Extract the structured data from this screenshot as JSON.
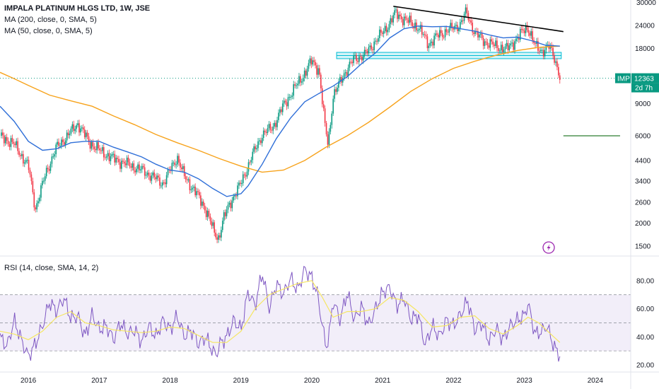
{
  "header": {
    "title": "IMPALA PLATINUM HLGS LTD, 1W, JSE",
    "ma200_label": "MA (200, close, 0, SMA, 5)",
    "ma50_label": "MA (50, close, 0, SMA, 5)",
    "rsi_label": "RSI (14, close, SMA, 14, 2)"
  },
  "price_badge": {
    "symbol": "IMP",
    "price": "12363",
    "countdown": "2d 7h",
    "color": "#089981"
  },
  "top_axis_partial": "30000",
  "colors": {
    "up": "#089981",
    "down": "#f23645",
    "ma200": "#f7a31c",
    "ma50": "#2f6fd8",
    "rsi": "#7e57c2",
    "rsi_ma": "#f5e663",
    "rsi_band": "#ede7f6",
    "zone_fill": "#b2ebf2",
    "zone_line": "#00bcd4",
    "trendline": "#000000",
    "target_line": "#2e7d32"
  },
  "chart_data": [
    {
      "type": "candlestick",
      "title": "IMPALA PLATINUM HLGS LTD, 1W, JSE",
      "scale": "log",
      "y_ticks": [
        1500,
        2000,
        2600,
        3400,
        4400,
        6000,
        9000,
        18000,
        24000
      ],
      "x_ticks": [
        "2016",
        "2017",
        "2018",
        "2019",
        "2020",
        "2021",
        "2022",
        "2023",
        "2024"
      ],
      "x_range": [
        2015.6,
        2024.5
      ],
      "y_range": [
        1350,
        33000
      ],
      "close_path": [
        [
          2015.6,
          6000
        ],
        [
          2015.8,
          5400
        ],
        [
          2016.0,
          4100
        ],
        [
          2016.1,
          2400
        ],
        [
          2016.25,
          3800
        ],
        [
          2016.4,
          5200
        ],
        [
          2016.55,
          6000
        ],
        [
          2016.7,
          7000
        ],
        [
          2016.85,
          5600
        ],
        [
          2017.0,
          5000
        ],
        [
          2017.2,
          4500
        ],
        [
          2017.4,
          4200
        ],
        [
          2017.6,
          3900
        ],
        [
          2017.75,
          3600
        ],
        [
          2017.9,
          3300
        ],
        [
          2018.0,
          3900
        ],
        [
          2018.1,
          4600
        ],
        [
          2018.2,
          3600
        ],
        [
          2018.35,
          3000
        ],
        [
          2018.5,
          2400
        ],
        [
          2018.62,
          1800
        ],
        [
          2018.68,
          1650
        ],
        [
          2018.75,
          2100
        ],
        [
          2018.85,
          2600
        ],
        [
          2019.0,
          3300
        ],
        [
          2019.15,
          4600
        ],
        [
          2019.3,
          6100
        ],
        [
          2019.45,
          6700
        ],
        [
          2019.6,
          8800
        ],
        [
          2019.75,
          10800
        ],
        [
          2019.9,
          13200
        ],
        [
          2020.0,
          15400
        ],
        [
          2020.1,
          13800
        ],
        [
          2020.18,
          7000
        ],
        [
          2020.23,
          5400
        ],
        [
          2020.3,
          9800
        ],
        [
          2020.45,
          13000
        ],
        [
          2020.6,
          15800
        ],
        [
          2020.75,
          16600
        ],
        [
          2020.9,
          19800
        ],
        [
          2021.0,
          22000
        ],
        [
          2021.1,
          24800
        ],
        [
          2021.18,
          28000
        ],
        [
          2021.3,
          26000
        ],
        [
          2021.5,
          23500
        ],
        [
          2021.65,
          19000
        ],
        [
          2021.8,
          21500
        ],
        [
          2021.95,
          22800
        ],
        [
          2022.1,
          24500
        ],
        [
          2022.18,
          28500
        ],
        [
          2022.3,
          21800
        ],
        [
          2022.45,
          19500
        ],
        [
          2022.6,
          18500
        ],
        [
          2022.75,
          17800
        ],
        [
          2022.9,
          20500
        ],
        [
          2023.0,
          22800
        ],
        [
          2023.05,
          23500
        ],
        [
          2023.15,
          18500
        ],
        [
          2023.25,
          17500
        ],
        [
          2023.35,
          18400
        ],
        [
          2023.42,
          16200
        ],
        [
          2023.48,
          13500
        ],
        [
          2023.5,
          12363
        ]
      ],
      "ma50_path": [
        [
          2015.6,
          8700
        ],
        [
          2015.8,
          7200
        ],
        [
          2016.0,
          5600
        ],
        [
          2016.2,
          5000
        ],
        [
          2016.4,
          5100
        ],
        [
          2016.6,
          5500
        ],
        [
          2016.8,
          5600
        ],
        [
          2017.0,
          5600
        ],
        [
          2017.2,
          5200
        ],
        [
          2017.4,
          4900
        ],
        [
          2017.6,
          4600
        ],
        [
          2017.8,
          4200
        ],
        [
          2018.0,
          3900
        ],
        [
          2018.2,
          3800
        ],
        [
          2018.4,
          3500
        ],
        [
          2018.6,
          3100
        ],
        [
          2018.8,
          2800
        ],
        [
          2019.0,
          2900
        ],
        [
          2019.1,
          3200
        ],
        [
          2019.3,
          4200
        ],
        [
          2019.5,
          5800
        ],
        [
          2019.7,
          7500
        ],
        [
          2019.9,
          9200
        ],
        [
          2020.1,
          10200
        ],
        [
          2020.3,
          11200
        ],
        [
          2020.5,
          12600
        ],
        [
          2020.7,
          14800
        ],
        [
          2020.9,
          17000
        ],
        [
          2021.1,
          20500
        ],
        [
          2021.3,
          23000
        ],
        [
          2021.5,
          23800
        ],
        [
          2021.7,
          23600
        ],
        [
          2021.9,
          23700
        ],
        [
          2022.1,
          23000
        ],
        [
          2022.3,
          22300
        ],
        [
          2022.5,
          21300
        ],
        [
          2022.7,
          20500
        ],
        [
          2022.9,
          20700
        ],
        [
          2023.1,
          19800
        ],
        [
          2023.3,
          18700
        ],
        [
          2023.5,
          18500
        ]
      ],
      "ma200_path": [
        [
          2015.6,
          13300
        ],
        [
          2015.8,
          12300
        ],
        [
          2016.0,
          11300
        ],
        [
          2016.3,
          10000
        ],
        [
          2016.6,
          9300
        ],
        [
          2016.9,
          8700
        ],
        [
          2017.2,
          7700
        ],
        [
          2017.5,
          6900
        ],
        [
          2017.8,
          6100
        ],
        [
          2018.1,
          5500
        ],
        [
          2018.4,
          5000
        ],
        [
          2018.7,
          4500
        ],
        [
          2019.0,
          4100
        ],
        [
          2019.3,
          3800
        ],
        [
          2019.6,
          3900
        ],
        [
          2019.9,
          4400
        ],
        [
          2020.2,
          5200
        ],
        [
          2020.5,
          6000
        ],
        [
          2020.8,
          7100
        ],
        [
          2021.1,
          8600
        ],
        [
          2021.4,
          10500
        ],
        [
          2021.7,
          12300
        ],
        [
          2022.0,
          14000
        ],
        [
          2022.3,
          15300
        ],
        [
          2022.6,
          16500
        ],
        [
          2022.9,
          17500
        ],
        [
          2023.2,
          18200
        ],
        [
          2023.5,
          18500
        ]
      ],
      "zone": {
        "from": 15800,
        "to": 17100,
        "x_start": 2020.35,
        "x_end": 2023.52
      },
      "trendline": [
        [
          2021.15,
          30500
        ],
        [
          2023.55,
          22200
        ]
      ],
      "current_price_line": 12363,
      "target_line": {
        "value": 6000,
        "x_start": 2023.55,
        "x_end": 2024.35
      }
    },
    {
      "type": "line",
      "title": "RSI (14, close, SMA, 14, 2)",
      "y_ticks": [
        20,
        40,
        60,
        80
      ],
      "y_range": [
        18,
        95
      ],
      "band": [
        30,
        70
      ],
      "midline": 50,
      "rsi_path": [
        [
          2015.6,
          40
        ],
        [
          2015.7,
          33
        ],
        [
          2015.8,
          52
        ],
        [
          2015.9,
          38
        ],
        [
          2016.0,
          26
        ],
        [
          2016.1,
          35
        ],
        [
          2016.2,
          48
        ],
        [
          2016.3,
          65
        ],
        [
          2016.4,
          58
        ],
        [
          2016.5,
          68
        ],
        [
          2016.6,
          53
        ],
        [
          2016.7,
          55
        ],
        [
          2016.8,
          40
        ],
        [
          2016.9,
          56
        ],
        [
          2017.0,
          45
        ],
        [
          2017.1,
          48
        ],
        [
          2017.2,
          38
        ],
        [
          2017.3,
          50
        ],
        [
          2017.4,
          42
        ],
        [
          2017.5,
          45
        ],
        [
          2017.6,
          36
        ],
        [
          2017.7,
          48
        ],
        [
          2017.8,
          40
        ],
        [
          2017.9,
          52
        ],
        [
          2018.0,
          45
        ],
        [
          2018.1,
          55
        ],
        [
          2018.2,
          40
        ],
        [
          2018.3,
          45
        ],
        [
          2018.4,
          35
        ],
        [
          2018.5,
          40
        ],
        [
          2018.6,
          30
        ],
        [
          2018.65,
          27
        ],
        [
          2018.7,
          35
        ],
        [
          2018.8,
          40
        ],
        [
          2018.9,
          52
        ],
        [
          2019.0,
          45
        ],
        [
          2019.1,
          72
        ],
        [
          2019.2,
          62
        ],
        [
          2019.3,
          86
        ],
        [
          2019.4,
          60
        ],
        [
          2019.5,
          78
        ],
        [
          2019.6,
          70
        ],
        [
          2019.7,
          82
        ],
        [
          2019.8,
          73
        ],
        [
          2019.9,
          88
        ],
        [
          2020.0,
          82
        ],
        [
          2020.08,
          70
        ],
        [
          2020.15,
          48
        ],
        [
          2020.2,
          32
        ],
        [
          2020.25,
          43
        ],
        [
          2020.3,
          66
        ],
        [
          2020.4,
          52
        ],
        [
          2020.5,
          72
        ],
        [
          2020.6,
          52
        ],
        [
          2020.7,
          62
        ],
        [
          2020.8,
          48
        ],
        [
          2020.9,
          60
        ],
        [
          2021.0,
          72
        ],
        [
          2021.1,
          75
        ],
        [
          2021.2,
          62
        ],
        [
          2021.3,
          68
        ],
        [
          2021.4,
          52
        ],
        [
          2021.5,
          56
        ],
        [
          2021.6,
          34
        ],
        [
          2021.7,
          48
        ],
        [
          2021.8,
          40
        ],
        [
          2021.9,
          52
        ],
        [
          2022.0,
          48
        ],
        [
          2022.1,
          56
        ],
        [
          2022.2,
          66
        ],
        [
          2022.3,
          45
        ],
        [
          2022.4,
          50
        ],
        [
          2022.5,
          37
        ],
        [
          2022.6,
          46
        ],
        [
          2022.7,
          38
        ],
        [
          2022.8,
          48
        ],
        [
          2022.9,
          52
        ],
        [
          2023.0,
          55
        ],
        [
          2023.05,
          64
        ],
        [
          2023.15,
          42
        ],
        [
          2023.25,
          44
        ],
        [
          2023.32,
          48
        ],
        [
          2023.38,
          38
        ],
        [
          2023.45,
          30
        ],
        [
          2023.5,
          27
        ]
      ],
      "rsi_ma_path": [
        [
          2015.6,
          44
        ],
        [
          2015.8,
          42
        ],
        [
          2016.0,
          38
        ],
        [
          2016.2,
          44
        ],
        [
          2016.4,
          54
        ],
        [
          2016.6,
          58
        ],
        [
          2016.8,
          50
        ],
        [
          2017.0,
          48
        ],
        [
          2017.2,
          45
        ],
        [
          2017.4,
          44
        ],
        [
          2017.6,
          43
        ],
        [
          2017.8,
          44
        ],
        [
          2018.0,
          47
        ],
        [
          2018.2,
          46
        ],
        [
          2018.4,
          41
        ],
        [
          2018.6,
          36
        ],
        [
          2018.8,
          36
        ],
        [
          2019.0,
          44
        ],
        [
          2019.2,
          60
        ],
        [
          2019.4,
          70
        ],
        [
          2019.6,
          74
        ],
        [
          2019.8,
          78
        ],
        [
          2020.0,
          80
        ],
        [
          2020.15,
          68
        ],
        [
          2020.3,
          54
        ],
        [
          2020.5,
          58
        ],
        [
          2020.7,
          58
        ],
        [
          2020.9,
          60
        ],
        [
          2021.1,
          68
        ],
        [
          2021.3,
          66
        ],
        [
          2021.5,
          58
        ],
        [
          2021.7,
          47
        ],
        [
          2021.9,
          48
        ],
        [
          2022.1,
          54
        ],
        [
          2022.3,
          55
        ],
        [
          2022.5,
          46
        ],
        [
          2022.7,
          42
        ],
        [
          2022.9,
          48
        ],
        [
          2023.05,
          54
        ],
        [
          2023.2,
          50
        ],
        [
          2023.35,
          43
        ],
        [
          2023.5,
          36
        ]
      ]
    }
  ]
}
